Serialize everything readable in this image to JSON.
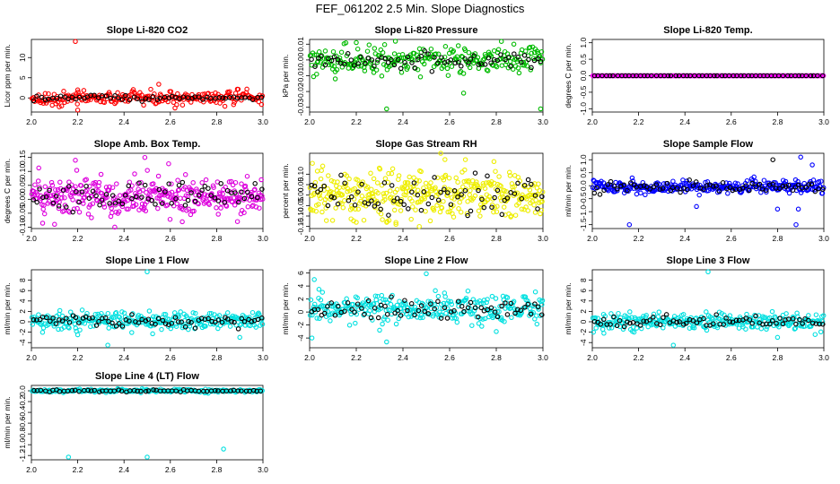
{
  "figure": {
    "title": "FEF_061202  2.5 Min. Slope Diagnostics",
    "colors": {
      "axis": "#000000",
      "reference_series": "#000000"
    }
  },
  "chart_data": [
    {
      "type": "scatter",
      "title": "Slope Li-820 CO2",
      "ylabel": "Licor ppm per min.",
      "xlim": [
        2.0,
        3.0
      ],
      "ylim": [
        -3.5,
        14.5
      ],
      "x_ticks": [
        2.0,
        2.2,
        2.4,
        2.6,
        2.8,
        3.0
      ],
      "x_tick_labels": [
        "2.0",
        "2.2",
        "2.4",
        "2.6",
        "2.8",
        "3.0"
      ],
      "y_ticks": [
        0,
        5,
        10
      ],
      "y_tick_labels": [
        "0",
        "5",
        "10"
      ],
      "series": [
        {
          "name": "points",
          "color": "#ff0000",
          "n": 240,
          "center": 0,
          "spread": 0.8,
          "outliers": [
            [
              2.19,
              14.0
            ],
            [
              2.12,
              -2.2
            ],
            [
              2.2,
              -3.0
            ],
            [
              2.55,
              3.4
            ],
            [
              2.62,
              -2.5
            ],
            [
              2.2,
              2.0
            ]
          ]
        },
        {
          "name": "reference",
          "color": "#000000",
          "n": 60,
          "center": 0,
          "spread": 0.4
        }
      ]
    },
    {
      "type": "scatter",
      "title": "Slope Li-820 Pressure",
      "ylabel": "kPa per min.",
      "xlim": [
        2.0,
        3.0
      ],
      "ylim": [
        -0.033,
        0.013
      ],
      "x_ticks": [
        2.0,
        2.2,
        2.4,
        2.6,
        2.8,
        3.0
      ],
      "x_tick_labels": [
        "2.0",
        "2.2",
        "2.4",
        "2.6",
        "2.8",
        "3.0"
      ],
      "y_ticks": [
        -0.03,
        -0.02,
        -0.01,
        0.0,
        0.01
      ],
      "y_tick_labels": [
        "-0.03",
        "-0.02",
        "-0.01",
        "0.00",
        "0.01"
      ],
      "series": [
        {
          "name": "points",
          "color": "#00bb00",
          "n": 260,
          "center": 0.0,
          "spread": 0.004,
          "outliers": [
            [
              2.33,
              -0.031
            ],
            [
              2.99,
              -0.031
            ],
            [
              2.66,
              -0.021
            ],
            [
              2.11,
              -0.012
            ],
            [
              2.03,
              -0.009
            ],
            [
              2.2,
              0.011
            ]
          ]
        },
        {
          "name": "reference",
          "color": "#000000",
          "n": 70,
          "center": 0.0,
          "spread": 0.0025
        }
      ]
    },
    {
      "type": "scatter",
      "title": "Slope Li-820 Temp.",
      "ylabel": "degrees C per min.",
      "xlim": [
        2.0,
        3.0
      ],
      "ylim": [
        -1.1,
        1.1
      ],
      "x_ticks": [
        2.0,
        2.2,
        2.4,
        2.6,
        2.8,
        3.0
      ],
      "x_tick_labels": [
        "2.0",
        "2.2",
        "2.4",
        "2.6",
        "2.8",
        "3.0"
      ],
      "y_ticks": [
        -1.0,
        -0.5,
        0.0,
        0.5,
        1.0
      ],
      "y_tick_labels": [
        "-1.0",
        "-0.5",
        "0.0",
        "0.5",
        "1.0"
      ],
      "series": [
        {
          "name": "points",
          "color": "#ff00ff",
          "n": 240,
          "center": 0,
          "spread": 0,
          "outliers": []
        },
        {
          "name": "reference",
          "color": "#000000",
          "n": 60,
          "center": 0,
          "spread": 0
        }
      ]
    },
    {
      "type": "scatter",
      "title": "Slope Amb. Box Temp.",
      "ylabel": "degrees C per min.",
      "xlim": [
        2.0,
        3.0
      ],
      "ylim": [
        -0.105,
        0.165
      ],
      "x_ticks": [
        2.0,
        2.2,
        2.4,
        2.6,
        2.8,
        3.0
      ],
      "x_tick_labels": [
        "2.0",
        "2.2",
        "2.4",
        "2.6",
        "2.8",
        "3.0"
      ],
      "y_ticks": [
        -0.1,
        -0.05,
        0.0,
        0.05,
        0.1,
        0.15
      ],
      "y_tick_labels": [
        "-0.10",
        "-0.05",
        "0.00",
        "0.05",
        "0.10",
        "0.15"
      ],
      "series": [
        {
          "name": "points",
          "color": "#dd00dd",
          "n": 360,
          "center": 0.01,
          "spread": 0.035,
          "outliers": [
            [
              2.19,
              0.14
            ],
            [
              2.49,
              0.15
            ],
            [
              2.36,
              -0.1
            ],
            [
              2.1,
              -0.09
            ],
            [
              2.89,
              -0.08
            ]
          ]
        },
        {
          "name": "reference",
          "color": "#000000",
          "n": 70,
          "center": 0.01,
          "spread": 0.025
        }
      ]
    },
    {
      "type": "scatter",
      "title": "Slope Gas Stream RH",
      "ylabel": "percent per min.",
      "xlim": [
        2.0,
        3.0
      ],
      "ylim": [
        -0.16,
        0.2
      ],
      "x_ticks": [
        2.0,
        2.2,
        2.4,
        2.6,
        2.8,
        3.0
      ],
      "x_tick_labels": [
        "2.0",
        "2.2",
        "2.4",
        "2.6",
        "2.8",
        "3.0"
      ],
      "y_ticks": [
        -0.15,
        -0.1,
        -0.05,
        0.0,
        0.05,
        0.1
      ],
      "y_tick_labels": [
        "-0.15",
        "-0.10",
        "-0.05",
        "0.00",
        "0.05",
        "0.10"
      ],
      "series": [
        {
          "name": "points",
          "color": "#eeee00",
          "n": 380,
          "center": 0.0,
          "spread": 0.055,
          "outliers": [
            [
              2.58,
              0.17
            ],
            [
              2.79,
              0.16
            ],
            [
              2.47,
              -0.15
            ],
            [
              2.2,
              -0.13
            ],
            [
              2.37,
              -0.14
            ]
          ]
        },
        {
          "name": "reference",
          "color": "#000000",
          "n": 70,
          "center": 0.0,
          "spread": 0.04
        }
      ]
    },
    {
      "type": "scatter",
      "title": "Slope Sample Flow",
      "ylabel": "ml/min per min.",
      "xlim": [
        2.0,
        3.0
      ],
      "ylim": [
        -1.65,
        1.25
      ],
      "x_ticks": [
        2.0,
        2.2,
        2.4,
        2.6,
        2.8,
        3.0
      ],
      "x_tick_labels": [
        "2.0",
        "2.2",
        "2.4",
        "2.6",
        "2.8",
        "3.0"
      ],
      "y_ticks": [
        -1.5,
        -1.0,
        -0.5,
        0.0,
        0.5,
        1.0
      ],
      "y_tick_labels": [
        "-1.5",
        "-1.0",
        "-0.5",
        "0.0",
        "0.5",
        "1.0"
      ],
      "series": [
        {
          "name": "points",
          "color": "#0000ff",
          "n": 300,
          "center": -0.05,
          "spread": 0.12,
          "outliers": [
            [
              2.16,
              -1.5
            ],
            [
              2.9,
              1.1
            ],
            [
              2.88,
              -1.5
            ],
            [
              2.8,
              -0.9
            ],
            [
              2.95,
              0.8
            ],
            [
              2.89,
              -0.9
            ],
            [
              2.45,
              -0.8
            ]
          ]
        },
        {
          "name": "reference",
          "color": "#000000",
          "n": 70,
          "center": -0.05,
          "spread": 0.12,
          "outliers": [
            [
              2.78,
              1.0
            ]
          ]
        }
      ]
    },
    {
      "type": "scatter",
      "title": "Slope Line 1 Flow",
      "ylabel": "ml/min per min.",
      "xlim": [
        2.0,
        3.0
      ],
      "ylim": [
        -5.0,
        10.0
      ],
      "x_ticks": [
        2.0,
        2.2,
        2.4,
        2.6,
        2.8,
        3.0
      ],
      "x_tick_labels": [
        "2.0",
        "2.2",
        "2.4",
        "2.6",
        "2.8",
        "3.0"
      ],
      "y_ticks": [
        -4,
        -2,
        0,
        2,
        4,
        6,
        8
      ],
      "y_tick_labels": [
        "-4",
        "-2",
        "0",
        "2",
        "4",
        "6",
        "8"
      ],
      "series": [
        {
          "name": "points",
          "color": "#00e0e0",
          "n": 280,
          "center": 0.2,
          "spread": 0.9,
          "outliers": [
            [
              2.5,
              9.6
            ],
            [
              2.33,
              -4.5
            ],
            [
              2.9,
              -3.0
            ],
            [
              2.2,
              -2.5
            ]
          ]
        },
        {
          "name": "reference",
          "color": "#000000",
          "n": 70,
          "center": 0.2,
          "spread": 0.6
        }
      ]
    },
    {
      "type": "scatter",
      "title": "Slope Line 2 Flow",
      "ylabel": "ml/min per min.",
      "xlim": [
        2.0,
        3.0
      ],
      "ylim": [
        -5.5,
        6.5
      ],
      "x_ticks": [
        2.0,
        2.2,
        2.4,
        2.6,
        2.8,
        3.0
      ],
      "x_tick_labels": [
        "2.0",
        "2.2",
        "2.4",
        "2.6",
        "2.8",
        "3.0"
      ],
      "y_ticks": [
        -4,
        -2,
        0,
        2,
        4,
        6
      ],
      "y_tick_labels": [
        "-4",
        "-2",
        "0",
        "2",
        "4",
        "6"
      ],
      "series": [
        {
          "name": "points",
          "color": "#00e0e0",
          "n": 300,
          "center": 0.5,
          "spread": 1.0,
          "outliers": [
            [
              2.5,
              5.9
            ],
            [
              2.02,
              5.0
            ],
            [
              2.04,
              3.5
            ],
            [
              2.01,
              -4.0
            ],
            [
              2.33,
              -4.6
            ],
            [
              2.8,
              -3.0
            ],
            [
              2.3,
              -2.8
            ]
          ]
        },
        {
          "name": "reference",
          "color": "#000000",
          "n": 70,
          "center": 0.4,
          "spread": 0.8
        }
      ]
    },
    {
      "type": "scatter",
      "title": "Slope Line 3 Flow",
      "ylabel": "ml/min per min.",
      "xlim": [
        2.0,
        3.0
      ],
      "ylim": [
        -5.0,
        10.0
      ],
      "x_ticks": [
        2.0,
        2.2,
        2.4,
        2.6,
        2.8,
        3.0
      ],
      "x_tick_labels": [
        "2.0",
        "2.2",
        "2.4",
        "2.6",
        "2.8",
        "3.0"
      ],
      "y_ticks": [
        -4,
        -2,
        0,
        2,
        4,
        6,
        8
      ],
      "y_tick_labels": [
        "-4",
        "-2",
        "0",
        "2",
        "4",
        "6",
        "8"
      ],
      "series": [
        {
          "name": "points",
          "color": "#00e0e0",
          "n": 280,
          "center": 0.0,
          "spread": 0.8,
          "outliers": [
            [
              2.5,
              9.6
            ],
            [
              2.35,
              -4.5
            ],
            [
              2.05,
              -2.2
            ],
            [
              2.8,
              -3.0
            ]
          ]
        },
        {
          "name": "reference",
          "color": "#000000",
          "n": 70,
          "center": 0.0,
          "spread": 0.6
        }
      ]
    },
    {
      "type": "scatter",
      "title": "Slope Line 4 (LT) Flow",
      "ylabel": "ml/min per min.",
      "xlim": [
        2.0,
        3.0
      ],
      "ylim": [
        -1.28,
        0.1
      ],
      "x_ticks": [
        2.0,
        2.2,
        2.4,
        2.6,
        2.8,
        3.0
      ],
      "x_tick_labels": [
        "2.0",
        "2.2",
        "2.4",
        "2.6",
        "2.8",
        "3.0"
      ],
      "y_ticks": [
        -1.2,
        -1.0,
        -0.8,
        -0.6,
        -0.4,
        -0.2,
        0.0
      ],
      "y_tick_labels": [
        "-1.2",
        "-1.0",
        "-0.8",
        "-0.6",
        "-0.4",
        "-0.2",
        "0.0"
      ],
      "series": [
        {
          "name": "points",
          "color": "#00e0e0",
          "n": 200,
          "center": 0.0,
          "spread": 0.015,
          "outliers": [
            [
              2.16,
              -1.23
            ],
            [
              2.5,
              -1.23
            ],
            [
              2.83,
              -1.08
            ]
          ]
        },
        {
          "name": "reference",
          "color": "#000000",
          "n": 60,
          "center": 0.0,
          "spread": 0.01
        }
      ]
    }
  ]
}
